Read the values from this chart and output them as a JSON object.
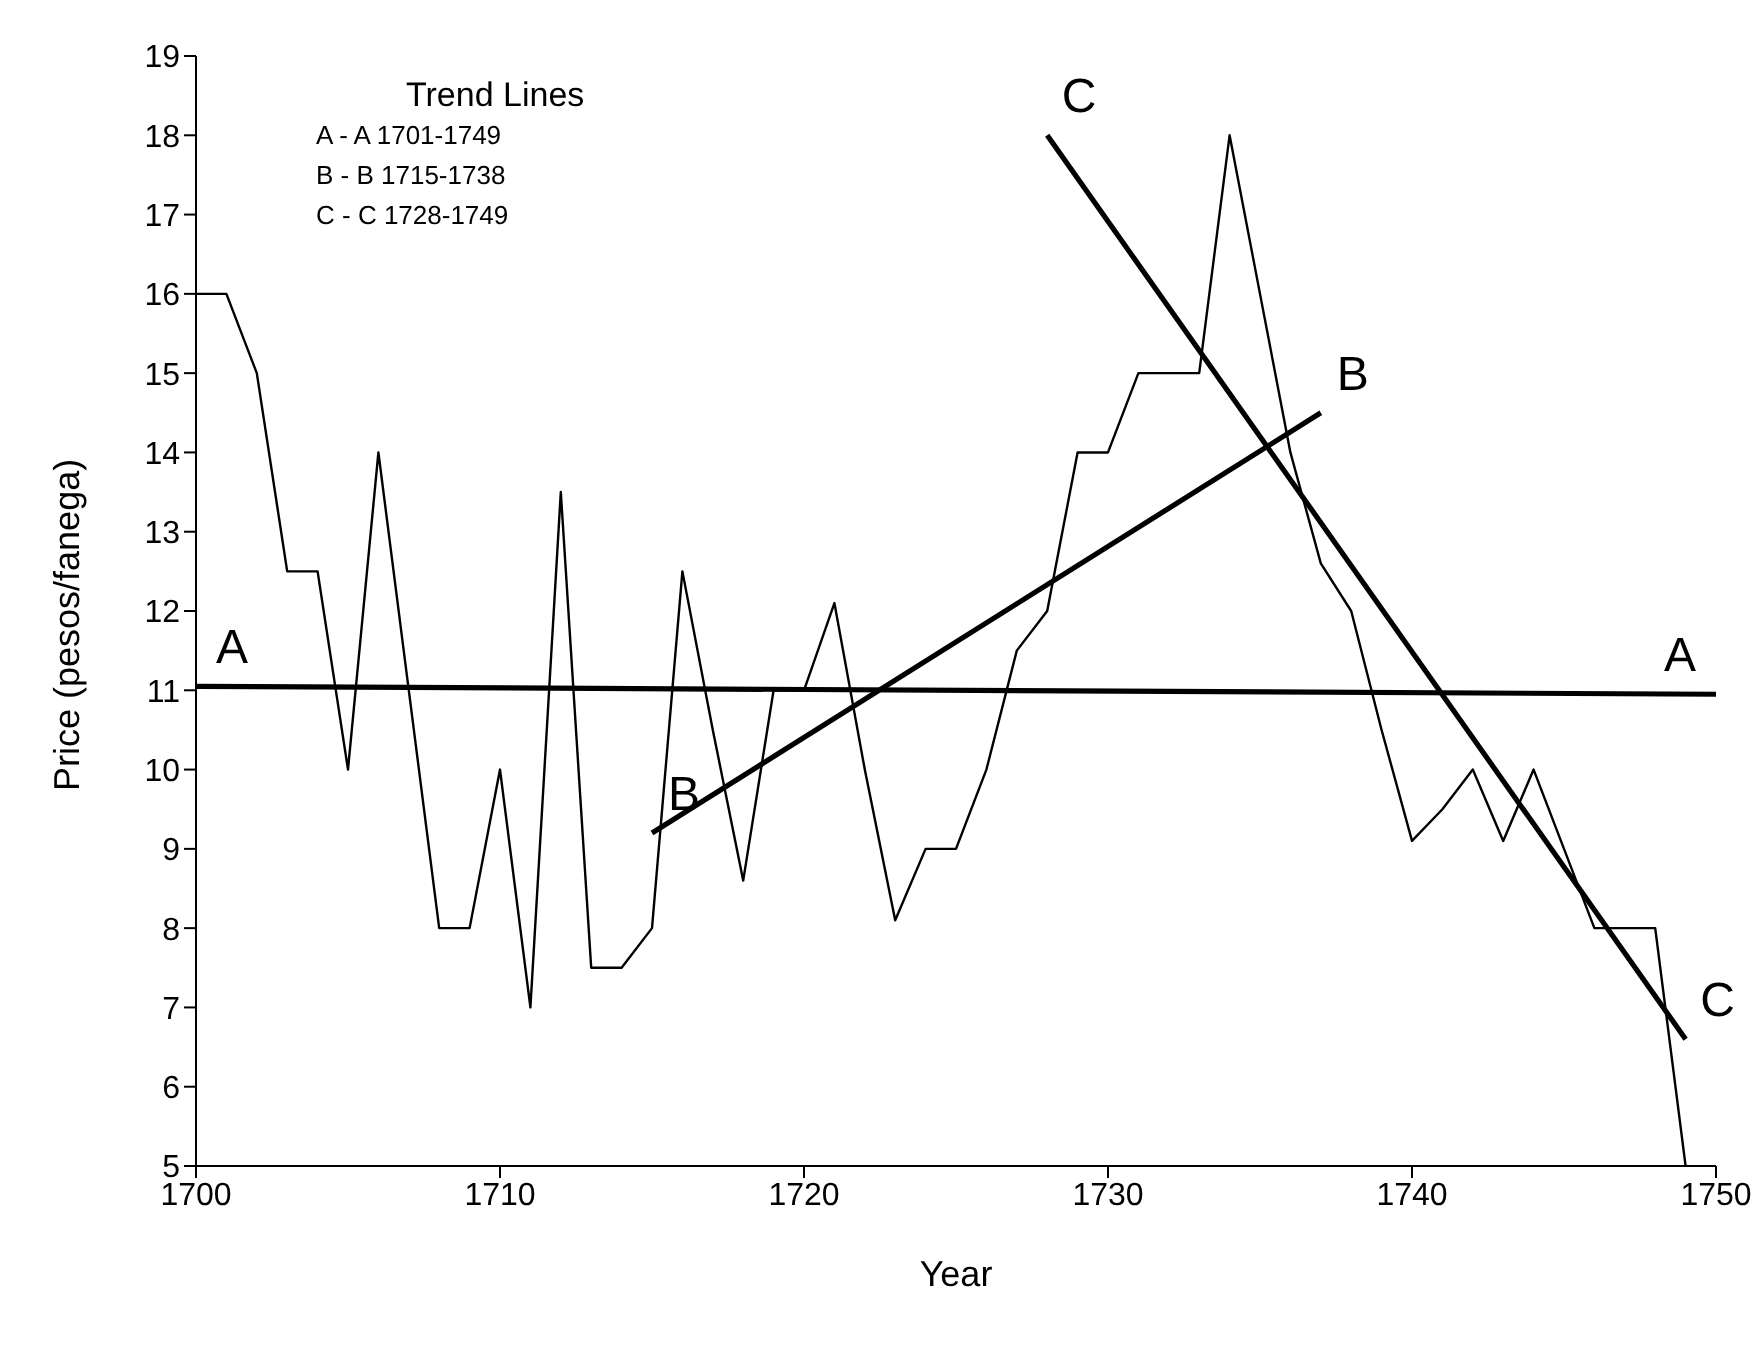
{
  "chart_data": {
    "type": "line",
    "xlabel": "Year",
    "ylabel": "Price (pesos/fanega)",
    "xlim": [
      1700,
      1750
    ],
    "xticks": [
      1700,
      1710,
      1720,
      1730,
      1740,
      1750
    ],
    "ylim": [
      5,
      19
    ],
    "yticks": [
      5,
      6,
      7,
      8,
      9,
      10,
      11,
      12,
      13,
      14,
      15,
      16,
      17,
      18,
      19
    ],
    "grid": false,
    "marker": "none",
    "line_style": "solid",
    "series": [
      {
        "color": "#000000",
        "x": [
          1700,
          1701,
          1702,
          1703,
          1704,
          1705,
          1706,
          1707,
          1708,
          1709,
          1710,
          1711,
          1712,
          1713,
          1714,
          1715,
          1716,
          1717,
          1718,
          1719,
          1720,
          1721,
          1722,
          1723,
          1724,
          1725,
          1726,
          1727,
          1728,
          1729,
          1730,
          1731,
          1732,
          1733,
          1734,
          1735,
          1736,
          1737,
          1738,
          1739,
          1740,
          1741,
          1742,
          1743,
          1744,
          1745,
          1746,
          1747,
          1748,
          1749
        ],
        "values": [
          16,
          16,
          15,
          12.5,
          12.5,
          10,
          14,
          11,
          8,
          8,
          10,
          7,
          13.5,
          7.5,
          7.5,
          8,
          12.5,
          10.5,
          8.6,
          11,
          11,
          12.1,
          10,
          8.1,
          9,
          9,
          10,
          11.5,
          12,
          14,
          14,
          15,
          15,
          15,
          18,
          16,
          14,
          12.6,
          12,
          10.5,
          9.1,
          9.5,
          10,
          9.1,
          10,
          9,
          8,
          8,
          8,
          5
        ]
      },
      {
        "type": "line",
        "color": "#000000",
        "x": [
          1700,
          1750
        ],
        "values": [
          11.05,
          10.95
        ]
      },
      {
        "type": "line",
        "color": "#000000",
        "x": [
          1715,
          1737
        ],
        "values": [
          9.2,
          14.5
        ]
      },
      {
        "type": "line",
        "color": "#000000",
        "x": [
          1728,
          1749
        ],
        "values": [
          18,
          6.6
        ]
      }
    ],
    "annotations": [
      "Trend Lines",
      "A - A 1701-1749",
      "B - B 1715-1738",
      "C - C 1728-1749",
      {
        "text": "A",
        "x": 1700,
        "y": 11.05
      },
      {
        "text": "A",
        "x": 1750,
        "y": 10.95
      },
      {
        "text": "B",
        "x": 1715,
        "y": 9.2
      },
      {
        "text": "B",
        "x": 1737,
        "y": 14.5
      },
      {
        "text": "C",
        "x": 1728,
        "y": 18
      },
      {
        "text": "C",
        "x": 1749,
        "y": 6.6
      }
    ]
  }
}
